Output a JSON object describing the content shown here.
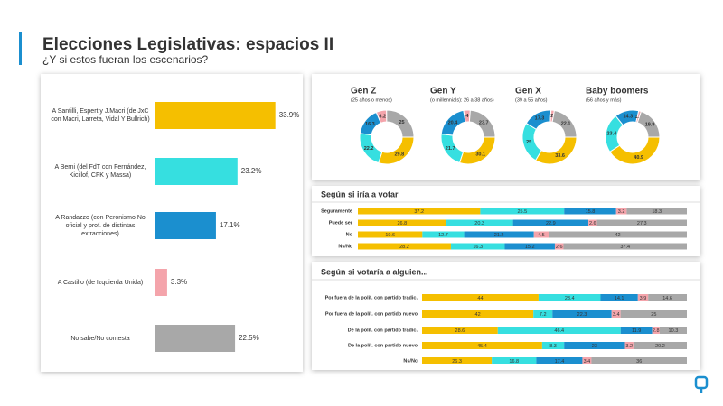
{
  "header": {
    "title": "Elecciones Legislativas: espacios II",
    "subtitle": "¿Y si estos fueran los escenarios?"
  },
  "chart_data": [
    {
      "type": "bar",
      "orientation": "horizontal",
      "categories": [
        "A Santilli,  Espert y J.Macri (de JxC con Macri, Larreta, Vidal Y Bullrich)",
        "A Berni (del FdT con Fernández, Kicillof, CFK y Massa)",
        "A Randazzo (con Peronismo No oficial y  prof. de distintas extracciones)",
        "A Castillo (de Izquierda Unida)",
        "No sabe/No contesta"
      ],
      "values": [
        33.9,
        23.2,
        17.1,
        3.3,
        22.5
      ],
      "value_labels": [
        "33.9%",
        "23.2%",
        "17.1%",
        "3.3%",
        "22.5%"
      ],
      "colors": [
        "#f5bf00",
        "#36dfe0",
        "#1b8fcf",
        "#f4a4ab",
        "#a8a8a8"
      ],
      "xlim": [
        0,
        35
      ]
    },
    {
      "type": "donut",
      "title": "Gen Z",
      "subtitle": "(25 años o menos)",
      "values": [
        29.8,
        22.2,
        16.3,
        6.2,
        25.0
      ],
      "colors": [
        "#f5bf00",
        "#36dfe0",
        "#1b8fcf",
        "#f4a4ab",
        "#a8a8a8"
      ]
    },
    {
      "type": "donut",
      "title": "Gen Y",
      "subtitle": "(o millennials): 26 a 38 años)",
      "values": [
        30.1,
        21.7,
        20.4,
        4.0,
        23.7
      ],
      "colors": [
        "#f5bf00",
        "#36dfe0",
        "#1b8fcf",
        "#f4a4ab",
        "#a8a8a8"
      ]
    },
    {
      "type": "donut",
      "title": "Gen X",
      "subtitle": "(39 a 55 años)",
      "values": [
        33.6,
        25.0,
        17.3,
        2.0,
        22.1
      ],
      "colors": [
        "#f5bf00",
        "#36dfe0",
        "#1b8fcf",
        "#f4a4ab",
        "#a8a8a8"
      ]
    },
    {
      "type": "donut",
      "title": "Baby boomers",
      "subtitle": "(56 años y más)",
      "values": [
        40.9,
        23.4,
        14.3,
        1.5,
        19.9
      ],
      "colors": [
        "#f5bf00",
        "#36dfe0",
        "#1b8fcf",
        "#f4a4ab",
        "#a8a8a8"
      ]
    },
    {
      "type": "stacked-bar",
      "title": "Según si iría a votar",
      "categories": [
        "Seguramente",
        "Puede ser",
        "No",
        "Ns/Nc"
      ],
      "series": [
        {
          "color": "#f5bf00",
          "values": [
            37.2,
            26.8,
            19.6,
            28.2
          ]
        },
        {
          "color": "#36dfe0",
          "values": [
            25.5,
            20.3,
            12.7,
            16.3
          ]
        },
        {
          "color": "#1b8fcf",
          "values": [
            15.8,
            22.9,
            21.2,
            15.2
          ]
        },
        {
          "color": "#f4a4ab",
          "values": [
            3.2,
            2.6,
            4.5,
            2.6
          ]
        },
        {
          "color": "#a8a8a8",
          "values": [
            18.3,
            27.3,
            42.0,
            37.4
          ]
        }
      ]
    },
    {
      "type": "stacked-bar",
      "title": "Según si votaría a alguien...",
      "categories": [
        "Por fuera de la polít. con partido tradic.",
        "Por fuera de la polít. con partido nuevo",
        "De la polít. con partido tradic.",
        "De la polít. con partido nuevo",
        "Ns/Nc"
      ],
      "series": [
        {
          "color": "#f5bf00",
          "values": [
            44.0,
            42.0,
            28.6,
            45.4,
            26.3
          ]
        },
        {
          "color": "#36dfe0",
          "values": [
            23.4,
            7.2,
            46.4,
            8.3,
            16.8
          ]
        },
        {
          "color": "#1b8fcf",
          "values": [
            14.1,
            22.3,
            11.9,
            23.0,
            17.4
          ]
        },
        {
          "color": "#f4a4ab",
          "values": [
            3.9,
            3.4,
            2.8,
            3.2,
            3.4
          ]
        },
        {
          "color": "#a8a8a8",
          "values": [
            14.6,
            25.0,
            10.3,
            20.2,
            36.0
          ]
        }
      ]
    }
  ]
}
